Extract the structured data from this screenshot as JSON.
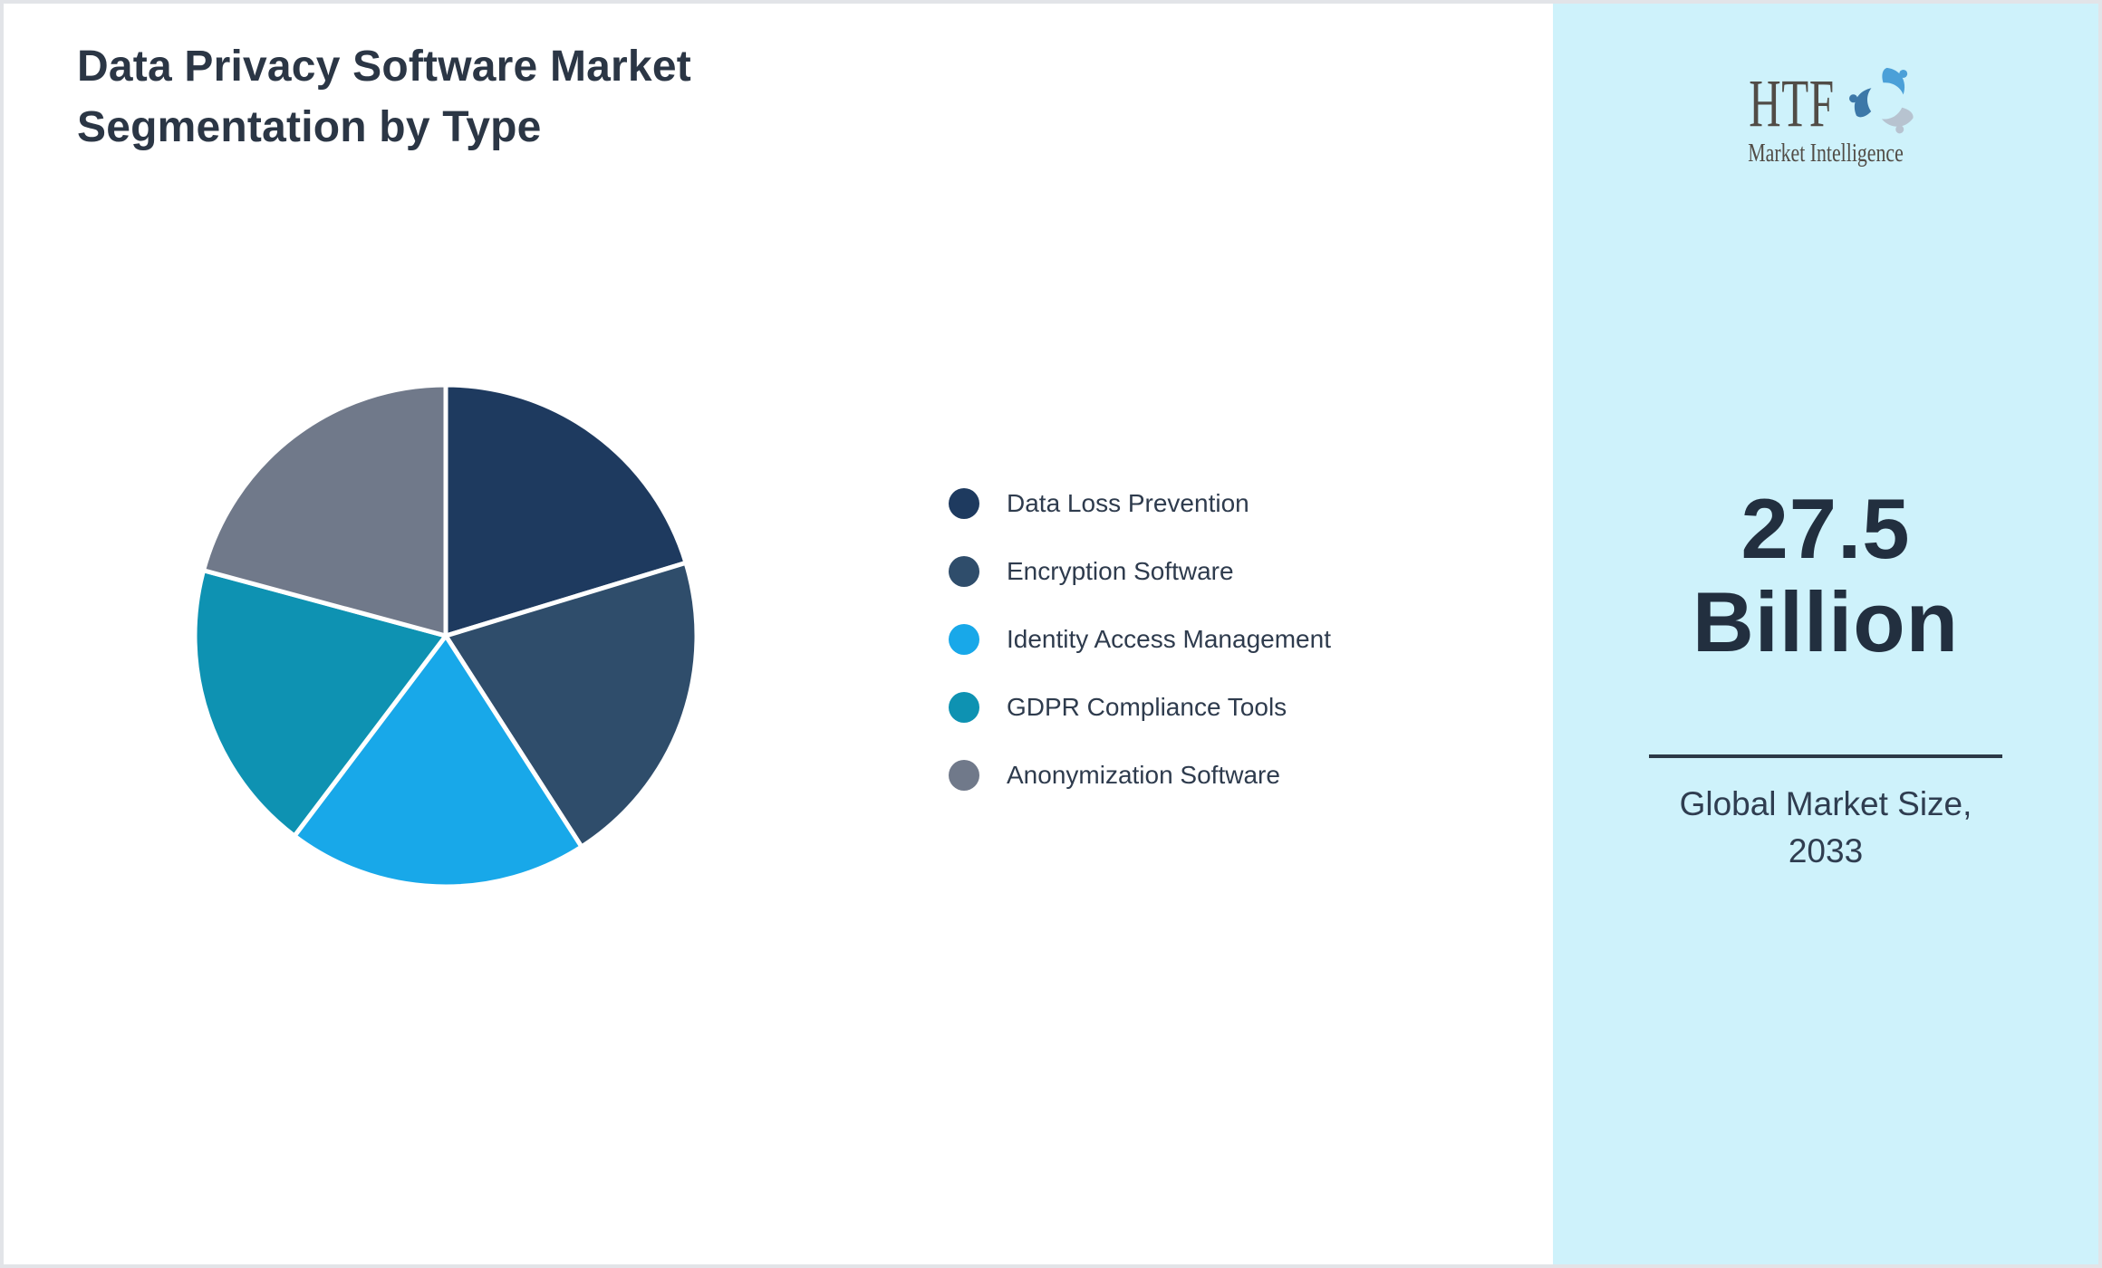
{
  "title": {
    "line1": "Data Privacy Software Market",
    "line2": "Segmentation by Type"
  },
  "sidebar": {
    "logo": {
      "text": "HTF",
      "subtext": "Market Intelligence",
      "swirl_colors": [
        "#4ba0d8",
        "#b7c3d0",
        "#3c78a8"
      ]
    },
    "market_size_value": "27.5",
    "market_size_unit": "Billion",
    "caption_line1": "Global Market Size,",
    "caption_line2": "2033"
  },
  "colors": {
    "frame_border": "#e2e4e8",
    "sidebar_bg": "#cef2fb",
    "title_text": "#2b3645",
    "legend_text": "#2e3b4d",
    "number_text": "#222f3f",
    "divider": "#2c3946",
    "caption_text": "#2f3d50"
  },
  "chart_data": {
    "type": "pie",
    "title": "Data Privacy Software Market Segmentation by Type",
    "labels": [
      "Data Loss Prevention",
      "Encryption Software",
      "Identity Access Management",
      "GDPR Compliance Tools",
      "Anonymization Software"
    ],
    "values_percent": [
      20.3,
      20.6,
      19.4,
      18.9,
      20.8
    ],
    "colors": [
      "#1e3a5f",
      "#2f4d6b",
      "#18a8e9",
      "#0e92b2",
      "#70798a"
    ],
    "start_angle_deg": 0,
    "direction": "clockwise",
    "slice_border_color": "#ffffff",
    "slice_border_width": 5,
    "legend_position": "right",
    "data_labels_shown": false
  }
}
